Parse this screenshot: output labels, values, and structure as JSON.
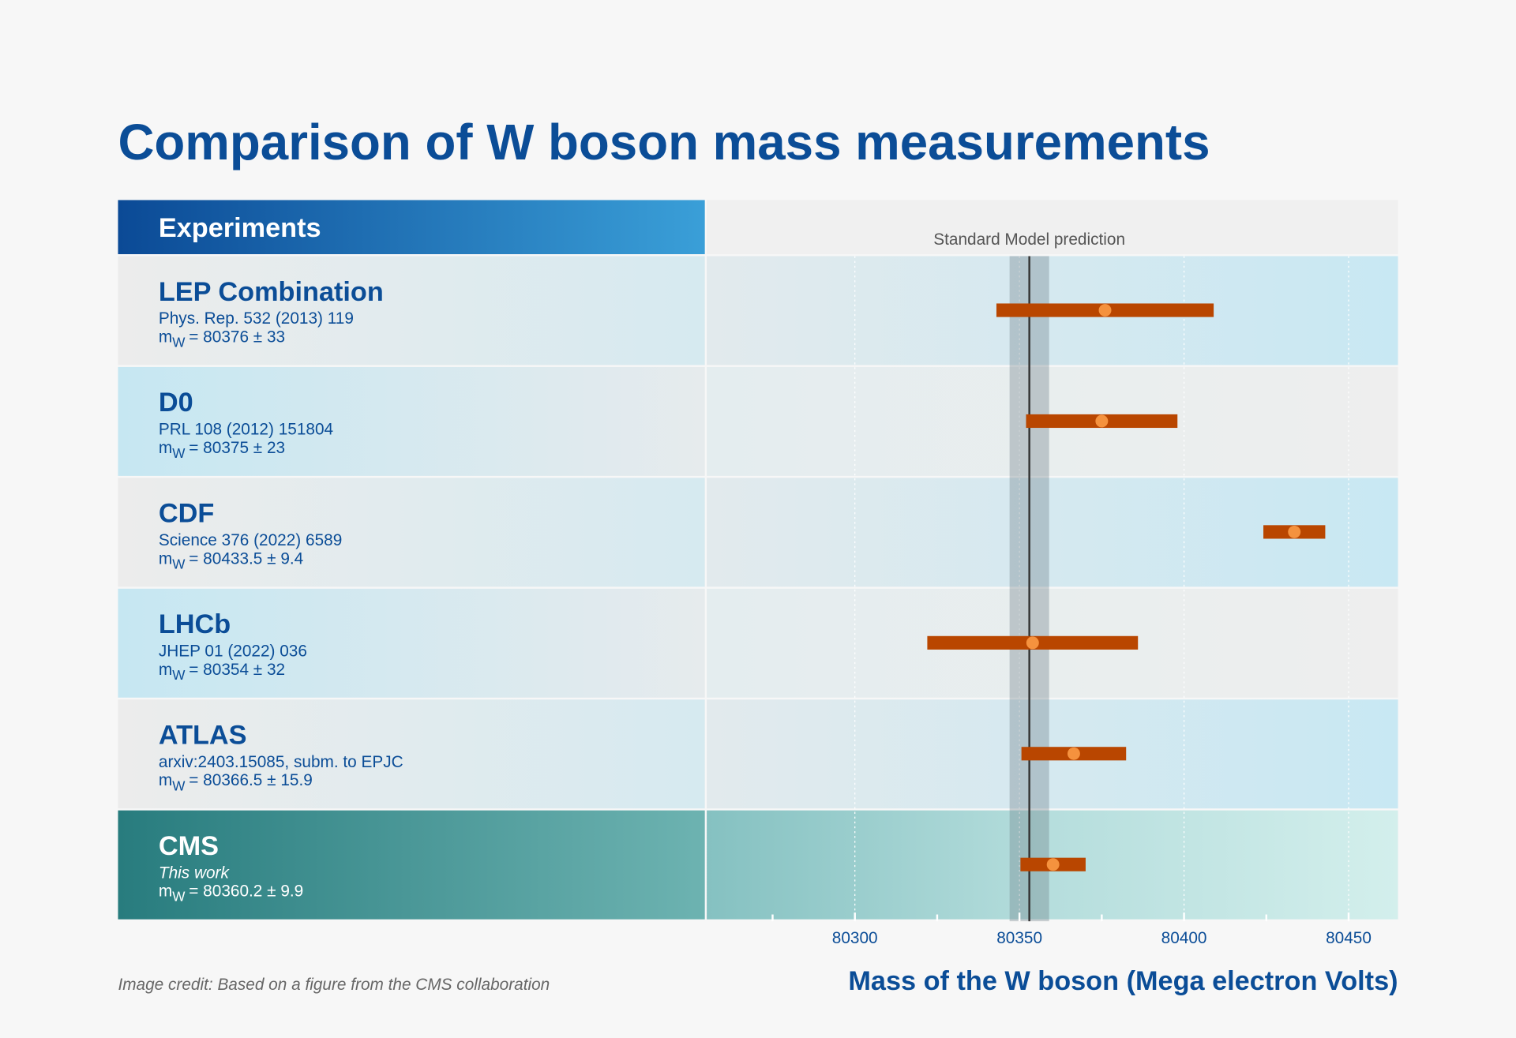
{
  "chart_data": {
    "type": "errorbar",
    "title": "Comparison of W boson mass measurements",
    "header": "Experiments",
    "categories": [
      "LEP Combination",
      "D0",
      "CDF",
      "LHCb",
      "ATLAS",
      "CMS"
    ],
    "references": [
      "Phys. Rep. 532 (2013) 119",
      "PRL 108 (2012) 151804",
      "Science 376 (2022) 6589",
      "JHEP 01 (2022) 036",
      "arxiv:2403.15085, subm. to EPJC",
      "This work"
    ],
    "mass_symbol": "m",
    "mass_subscript": "W",
    "values": [
      80376,
      80375,
      80433.5,
      80354,
      80366.5,
      80360.2
    ],
    "errors": [
      33,
      23,
      9.4,
      32,
      15.9,
      9.9
    ],
    "value_labels": [
      "= 80376 ± 33",
      "= 80375 ± 23",
      "= 80433.5 ± 9.4",
      "= 80354 ± 32",
      "= 80366.5 ± 15.9",
      "= 80360.2 ± 9.9"
    ],
    "highlight": "CMS",
    "reference_line": {
      "label": "Standard Model prediction",
      "value": 80353,
      "error": 6
    },
    "xlabel": "Mass of the W boson (Mega electron Volts)",
    "xlim": [
      80255,
      80465
    ],
    "xticks": [
      80300,
      80350,
      80400,
      80450
    ],
    "xminorticks": [
      80275,
      80325,
      80375,
      80425
    ],
    "grid": true,
    "color": "#b94600",
    "marker_color": "#f5923e",
    "credit": "Image credit: Based on a figure from the CMS collaboration"
  }
}
